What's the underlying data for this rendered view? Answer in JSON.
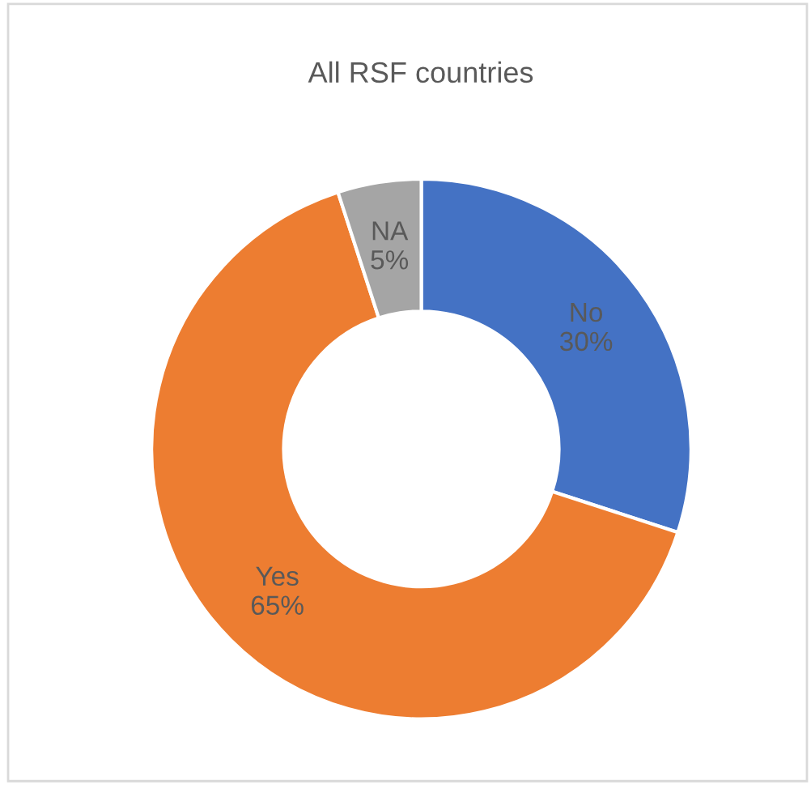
{
  "chart_data": {
    "type": "donut",
    "title": "All RSF countries",
    "categories": [
      "No",
      "Yes",
      "NA"
    ],
    "values": [
      30,
      65,
      5
    ],
    "value_labels": [
      "30%",
      "65%",
      "5%"
    ],
    "colors": [
      "#4472c4",
      "#ed7d31",
      "#a5a5a5"
    ],
    "legend": false
  }
}
